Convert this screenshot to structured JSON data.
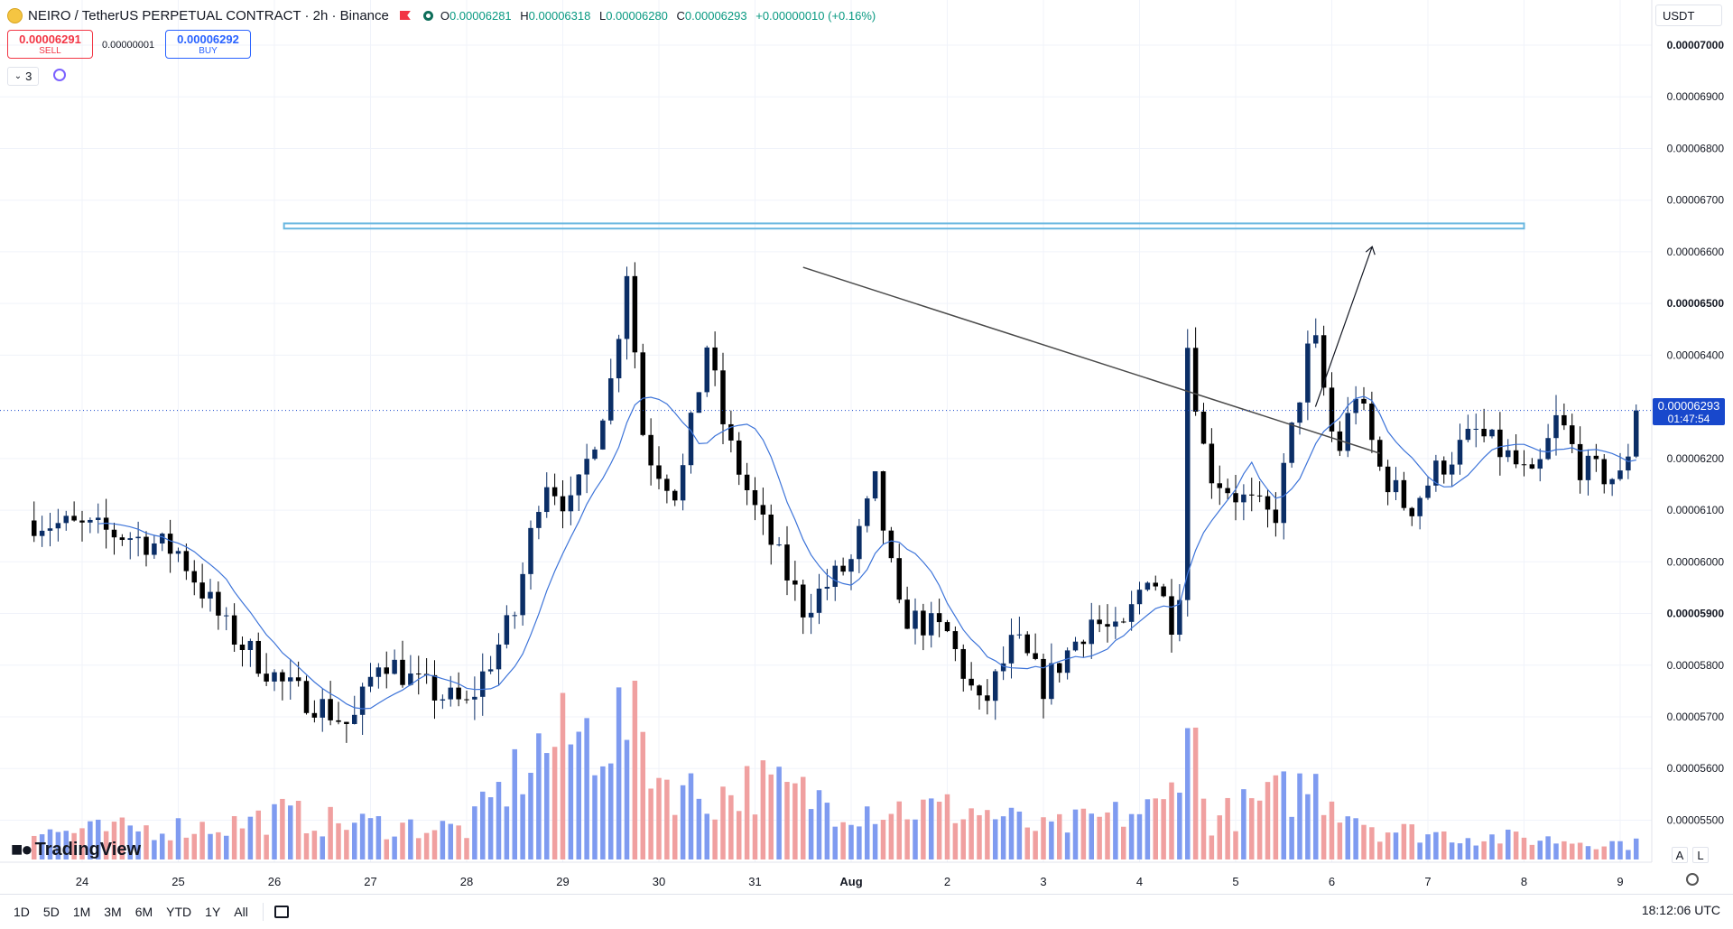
{
  "header": {
    "title": "NEIRO / TetherUS PERPETUAL CONTRACT · 2h · Binance",
    "ohlc": [
      {
        "k": "O",
        "v": "0.00006281"
      },
      {
        "k": "H",
        "v": "0.00006318"
      },
      {
        "k": "L",
        "v": "0.00006280"
      },
      {
        "k": "C",
        "v": "0.00006293"
      }
    ],
    "change": "+0.00000010 (+0.16%)"
  },
  "trade": {
    "sell_price": "0.00006291",
    "sell_label": "SELL",
    "spread": "0.00000001",
    "buy_price": "0.00006292",
    "buy_label": "BUY"
  },
  "indicators_count": "3",
  "currency": "USDT",
  "price_label": {
    "price": "0.00006293",
    "countdown": "01:47:54"
  },
  "brand": "TradingView",
  "axis_buttons": [
    "A",
    "L"
  ],
  "timeframes": [
    "1D",
    "5D",
    "1M",
    "3M",
    "6M",
    "YTD",
    "1Y",
    "All"
  ],
  "clock": "18:12:06 UTC",
  "colors": {
    "up": "#0b2e66",
    "down": "#000000",
    "vol_up": "#7f9bf0",
    "vol_down": "#f0a0a0",
    "ma": "#3d74d9",
    "zone": "#69b7e0",
    "price_line": "#1848cc"
  },
  "chart_data": {
    "type": "candlestick",
    "title": "NEIRO / TetherUS PERPETUAL CONTRACT · 2h · Binance",
    "y_axis": {
      "ticks": [
        "0.00007000",
        "0.00006900",
        "0.00006800",
        "0.00006700",
        "0.00006600",
        "0.00006500",
        "0.00006400",
        "0.00006200",
        "0.00006100",
        "0.00006000",
        "0.00005900",
        "0.00005800",
        "0.00005700",
        "0.00005600",
        "0.00005500"
      ],
      "range": [
        5.4e-05,
        7.02e-05
      ],
      "side": "right"
    },
    "x_axis": {
      "ticks": [
        "24",
        "25",
        "26",
        "27",
        "28",
        "29",
        "30",
        "31",
        "Aug",
        "2",
        "3",
        "4",
        "5",
        "6",
        "7",
        "8",
        "9"
      ],
      "range": [
        "Jul 23 ~12:00",
        "Aug 9 ~18:00"
      ],
      "interval": "2h"
    },
    "last_price": 6.293e-05,
    "resistance_zone": {
      "low": 6.645e-05,
      "high": 6.655e-05,
      "from": "Jul 26",
      "to": "Aug 8"
    },
    "trendline": {
      "start": {
        "date": "Jul 31 ~12:00",
        "price": 6.57e-05
      },
      "end": {
        "date": "Aug 6 ~12:00",
        "price": 6.21e-05
      }
    },
    "projection_arrow": {
      "from": {
        "date": "Aug 5 ~20:00",
        "price": 6.3e-05
      },
      "to": {
        "date": "Aug 6 ~10:00",
        "price": 6.61e-05
      }
    },
    "moving_average": {
      "color": "#3d74d9"
    },
    "grid": true,
    "anchors": [
      [
        0.0,
        6.08e-05
      ],
      [
        1.0,
        6.05e-05
      ],
      [
        1.5,
        6.02e-05
      ],
      [
        2.0,
        5.87e-05
      ],
      [
        2.6,
        5.76e-05
      ],
      [
        3.0,
        5.72e-05
      ],
      [
        3.3,
        5.68e-05
      ],
      [
        3.6,
        5.82e-05
      ],
      [
        4.0,
        5.76e-05
      ],
      [
        4.5,
        5.72e-05
      ],
      [
        5.0,
        5.9e-05
      ],
      [
        5.3,
        6.17e-05
      ],
      [
        5.6,
        6.1e-05
      ],
      [
        6.05,
        6.38e-05
      ],
      [
        6.15,
        6.6e-05
      ],
      [
        6.35,
        6.22e-05
      ],
      [
        6.7,
        6.13e-05
      ],
      [
        7.0,
        6.42e-05
      ],
      [
        7.2,
        6.24e-05
      ],
      [
        7.5,
        6.1e-05
      ],
      [
        8.0,
        5.91e-05
      ],
      [
        8.5,
        6e-05
      ],
      [
        8.75,
        6.15e-05
      ],
      [
        9.0,
        5.9e-05
      ],
      [
        9.5,
        5.86e-05
      ],
      [
        9.85,
        5.71e-05
      ],
      [
        10.2,
        5.85e-05
      ],
      [
        10.5,
        5.76e-05
      ],
      [
        11.0,
        5.89e-05
      ],
      [
        11.3,
        5.85e-05
      ],
      [
        11.6,
        5.99e-05
      ],
      [
        11.9,
        5.86e-05
      ],
      [
        12.0,
        6.42e-05
      ],
      [
        12.2,
        6.18e-05
      ],
      [
        12.5,
        6.13e-05
      ],
      [
        12.9,
        6.08e-05
      ],
      [
        13.3,
        6.45e-05
      ],
      [
        13.55,
        6.2e-05
      ],
      [
        13.75,
        6.33e-05
      ],
      [
        14.0,
        6.18e-05
      ],
      [
        14.3,
        6.1e-05
      ],
      [
        14.6,
        6.18e-05
      ],
      [
        15.0,
        6.25e-05
      ],
      [
        15.35,
        6.2e-05
      ],
      [
        15.6,
        6.15e-05
      ],
      [
        15.85,
        6.28e-05
      ],
      [
        16.1,
        6.18e-05
      ],
      [
        16.5,
        6.16e-05
      ],
      [
        16.7,
        6.293e-05
      ]
    ],
    "volume_levels": [
      [
        0.0,
        0.07
      ],
      [
        2.0,
        0.09
      ],
      [
        2.6,
        0.12
      ],
      [
        3.0,
        0.1
      ],
      [
        4.5,
        0.08
      ],
      [
        5.0,
        0.22
      ],
      [
        5.3,
        0.3
      ],
      [
        6.05,
        0.35
      ],
      [
        6.25,
        0.38
      ],
      [
        6.5,
        0.22
      ],
      [
        7.0,
        0.16
      ],
      [
        7.5,
        0.2
      ],
      [
        8.5,
        0.14
      ],
      [
        9.8,
        0.13
      ],
      [
        10.5,
        0.08
      ],
      [
        11.8,
        0.14
      ],
      [
        12.0,
        0.42
      ],
      [
        12.2,
        0.1
      ],
      [
        13.3,
        0.2
      ],
      [
        14.0,
        0.08
      ],
      [
        15.0,
        0.06
      ],
      [
        16.0,
        0.05
      ],
      [
        16.7,
        0.04
      ]
    ]
  }
}
